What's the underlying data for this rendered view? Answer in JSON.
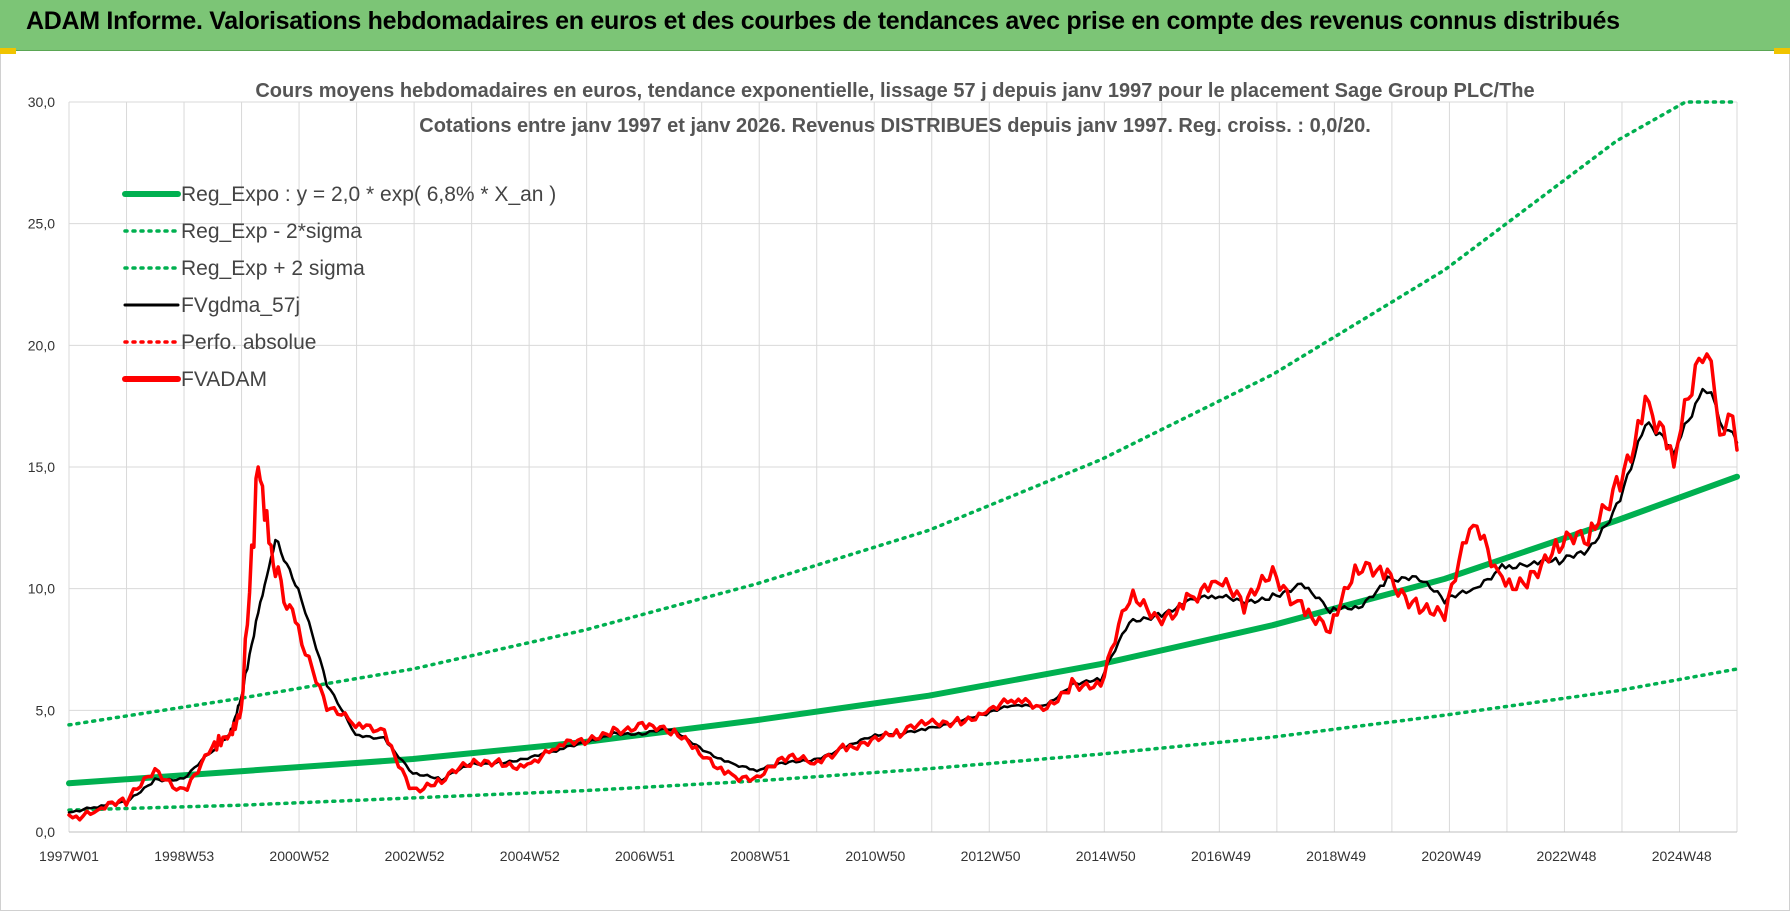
{
  "header": {
    "title": "ADAM Informe. Valorisations hebdomadaires en euros et des courbes de tendances avec prise en compte des revenus connus distribués"
  },
  "colors": {
    "header_bg": "#7cc576",
    "regression": "#00b050",
    "gdma": "#000000",
    "adam": "#ff0000",
    "grid": "#d9d9d9"
  },
  "chart_data": {
    "type": "line",
    "title_lines": [
      "Cours moyens hebdomadaires en euros, tendance exponentielle, lissage 57 j depuis janv 1997 pour le placement Sage Group PLC/The",
      "Cotations entre janv 1997 et janv 2026. Revenus DISTRIBUES depuis janv 1997. Reg. croiss. : 0,0/20."
    ],
    "ylim": [
      0,
      30
    ],
    "y_ticks": [
      "0,0",
      "5,0",
      "10,0",
      "15,0",
      "20,0",
      "25,0",
      "30,0"
    ],
    "x_ticks": [
      "1997W01",
      "1998W53",
      "2000W52",
      "2002W52",
      "2004W52",
      "2006W51",
      "2008W51",
      "2010W50",
      "2012W50",
      "2014W50",
      "2016W49",
      "2018W49",
      "2020W49",
      "2022W48",
      "2024W48"
    ],
    "x_range": [
      1997.0,
      2026.1
    ],
    "grid": true,
    "legend_position": "top-left",
    "legend": [
      {
        "label": "Reg_Expo : y = 2,0 * exp( 6,8% *  X_an )",
        "style": "solid-thick",
        "color": "#00b050"
      },
      {
        "label": "Reg_Exp - 2*sigma",
        "style": "dotted",
        "color": "#00b050"
      },
      {
        "label": "Reg_Exp + 2 sigma",
        "style": "dotted",
        "color": "#00b050"
      },
      {
        "label": "FVgdma_57j",
        "style": "solid",
        "color": "#000000"
      },
      {
        "label": "Perfo. absolue",
        "style": "dotted",
        "color": "#ff0000"
      },
      {
        "label": "FVADAM",
        "style": "solid-thick",
        "color": "#ff0000"
      }
    ],
    "series": [
      {
        "name": "Reg_Expo : y = 2,0 * exp( 6,8% *  X_an )",
        "x": [
          1997.0,
          2000.0,
          2003.0,
          2006.0,
          2009.0,
          2012.0,
          2015.0,
          2018.0,
          2021.0,
          2024.0,
          2026.1
        ],
        "y": [
          2.0,
          2.5,
          3.0,
          3.7,
          4.6,
          5.6,
          6.9,
          8.5,
          10.4,
          12.8,
          14.6
        ]
      },
      {
        "name": "Reg_Exp - 2*sigma",
        "x": [
          1997.0,
          2000.0,
          2003.0,
          2006.0,
          2009.0,
          2012.0,
          2015.0,
          2018.0,
          2021.0,
          2024.0,
          2026.1
        ],
        "y": [
          0.9,
          1.1,
          1.4,
          1.7,
          2.1,
          2.6,
          3.2,
          3.9,
          4.8,
          5.8,
          6.7
        ]
      },
      {
        "name": "Reg_Exp + 2 sigma",
        "x": [
          1997.0,
          2000.0,
          2003.0,
          2006.0,
          2009.0,
          2012.0,
          2015.0,
          2018.0,
          2021.0,
          2024.0,
          2025.2,
          2026.1
        ],
        "y": [
          4.4,
          5.5,
          6.7,
          8.3,
          10.2,
          12.4,
          15.3,
          18.8,
          23.1,
          28.4,
          30.0,
          30.0
        ]
      },
      {
        "name": "FVgdma_57j",
        "x": [
          1997.0,
          1997.5,
          1998.0,
          1998.5,
          1999.0,
          1999.5,
          1999.8,
          2000.0,
          2000.3,
          2000.6,
          2001.0,
          2001.5,
          2002.0,
          2002.5,
          2003.0,
          2003.5,
          2004.0,
          2004.5,
          2005.0,
          2005.5,
          2006.0,
          2006.5,
          2007.0,
          2007.5,
          2008.0,
          2008.5,
          2009.0,
          2009.5,
          2010.0,
          2010.5,
          2011.0,
          2011.5,
          2012.0,
          2012.5,
          2013.0,
          2013.5,
          2014.0,
          2014.5,
          2015.0,
          2015.5,
          2016.0,
          2016.5,
          2017.0,
          2017.5,
          2018.0,
          2018.5,
          2019.0,
          2019.5,
          2020.0,
          2020.5,
          2021.0,
          2021.5,
          2022.0,
          2022.5,
          2023.0,
          2023.5,
          2024.0,
          2024.5,
          2025.0,
          2025.5,
          2026.1
        ],
        "y": [
          0.8,
          1.0,
          1.2,
          2.2,
          2.2,
          3.3,
          4.0,
          5.5,
          9.0,
          12.0,
          10.0,
          6.0,
          4.0,
          3.9,
          2.4,
          2.1,
          2.8,
          2.9,
          3.0,
          3.3,
          3.7,
          4.1,
          4.0,
          4.2,
          3.5,
          2.9,
          2.5,
          2.8,
          3.0,
          3.5,
          3.9,
          4.0,
          4.3,
          4.6,
          4.8,
          5.2,
          5.2,
          6.1,
          6.2,
          8.6,
          9.0,
          9.5,
          9.6,
          9.4,
          9.8,
          10.2,
          9.0,
          9.2,
          10.5,
          10.5,
          9.4,
          10.0,
          11.0,
          11.0,
          11.0,
          11.6,
          13.5,
          16.7,
          15.5,
          18.2,
          16.0
        ]
      },
      {
        "name": "FVADAM",
        "x": [
          1997.0,
          1997.5,
          1998.0,
          1998.5,
          1999.0,
          1999.5,
          1999.8,
          2000.0,
          2000.3,
          2000.6,
          2001.0,
          2001.5,
          2002.0,
          2002.5,
          2003.0,
          2003.5,
          2004.0,
          2004.5,
          2005.0,
          2005.5,
          2006.0,
          2006.5,
          2007.0,
          2007.5,
          2008.0,
          2008.5,
          2009.0,
          2009.5,
          2010.0,
          2010.5,
          2011.0,
          2011.5,
          2012.0,
          2012.5,
          2013.0,
          2013.5,
          2014.0,
          2014.5,
          2015.0,
          2015.5,
          2016.0,
          2016.5,
          2017.0,
          2017.5,
          2018.0,
          2018.5,
          2019.0,
          2019.5,
          2020.0,
          2020.5,
          2021.0,
          2021.5,
          2022.0,
          2022.5,
          2023.0,
          2023.5,
          2024.0,
          2024.5,
          2025.0,
          2025.5,
          2026.1
        ],
        "y": [
          0.7,
          0.9,
          1.1,
          2.6,
          1.8,
          3.5,
          4.0,
          5.0,
          15.0,
          10.5,
          8.5,
          5.0,
          4.3,
          4.2,
          1.8,
          2.0,
          2.7,
          3.0,
          2.8,
          3.4,
          3.6,
          4.3,
          4.5,
          4.0,
          3.2,
          2.5,
          2.3,
          2.9,
          2.8,
          3.6,
          3.8,
          3.9,
          4.5,
          4.7,
          4.9,
          5.3,
          5.0,
          6.3,
          6.0,
          9.4,
          8.8,
          9.8,
          10.3,
          9.0,
          10.9,
          9.5,
          8.2,
          10.6,
          10.8,
          9.6,
          8.7,
          12.6,
          10.5,
          10.7,
          11.5,
          11.8,
          14.6,
          17.9,
          15.0,
          19.3,
          15.7
        ]
      }
    ]
  }
}
